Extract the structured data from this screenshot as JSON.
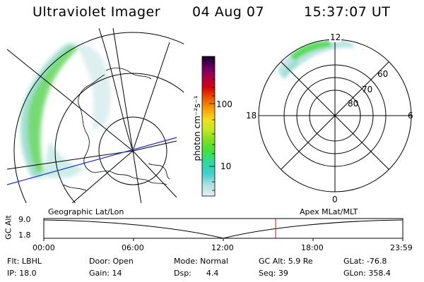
{
  "header": {
    "instrument": "Ultraviolet Imager",
    "date": "04 Aug 07",
    "time": "15:37:07 UT"
  },
  "left_panel": {
    "caption": "Geographic Lat/Lon"
  },
  "colorbar": {
    "unit_label": "photon cm⁻²s⁻¹",
    "tick_100": "100",
    "tick_10": "10"
  },
  "polar_panel": {
    "caption": "Apex  MLat/MLT",
    "mlt_12": "12",
    "mlt_18": "18",
    "mlt_6": "6",
    "mlt_0": "0",
    "lat_60": "60",
    "lat_70": "70",
    "lat_80": "80"
  },
  "altitude_plot": {
    "ylabel": "GC Alt",
    "y_top": "9.0",
    "y_bottom": "1.8",
    "x_ticks": [
      "00:00",
      "06:00",
      "12:00",
      "18:00",
      "23:59"
    ]
  },
  "footer": {
    "flt": "Flt: LBHL",
    "ip": "IP: 18.0",
    "door": "Door: Open",
    "gain": "Gain: 14",
    "mode": "Mode: Normal",
    "dsp": "Dsp:      4.4",
    "gcalt": "GC Alt: 5.9 Re",
    "seq": "Seq: 39",
    "glat": "GLat: -76.8",
    "glon": "GLon: 358.4"
  }
}
